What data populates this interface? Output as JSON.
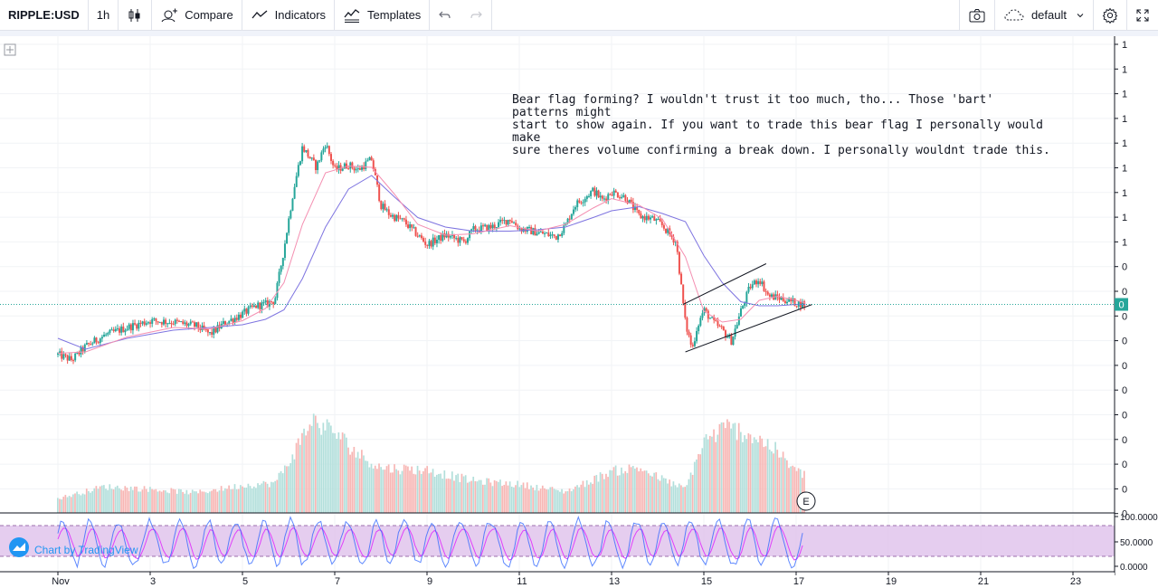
{
  "toolbar": {
    "symbol": "RIPPLE:USD",
    "interval": "1h",
    "compare_label": "Compare",
    "indicators_label": "Indicators",
    "templates_label": "Templates",
    "layout_label": "default"
  },
  "annotation": "Bear flag forming? I wouldn't trust it too much, tho... Those 'bart' patterns might\nstart to show again. If you want to trade this bear flag I personally would make\nsure theres volume confirming a break down. I personally wouldnt trade this.",
  "watermark": "Chart by TradingView",
  "colors": {
    "up": "#26a69a",
    "down": "#ef5350",
    "ma_fast": "#f48fb1",
    "ma_slow": "#7e74e0",
    "stoch_k": "#2962ff",
    "stoch_d": "#e040fb",
    "stoch_band": "#e1c4ec"
  },
  "chart_data": {
    "type": "candlestick",
    "x_ticks": [
      "Nov",
      "3",
      "5",
      "7",
      "9",
      "11",
      "13",
      "15",
      "17",
      "19",
      "21",
      "23"
    ],
    "price_axis_labels": [
      "1",
      "1",
      "1",
      "1",
      "1",
      "1",
      "1",
      "1",
      "1",
      "0",
      "0",
      "0",
      "0",
      "0",
      "0",
      "0",
      "0",
      "0",
      "0",
      "0"
    ],
    "last_price_label": "0",
    "event_marker": "E",
    "stoch_axis_labels": [
      "100.0000",
      "50.0000",
      "0.0000"
    ],
    "series": [
      {
        "kind": "price_path",
        "x": [
          1,
          1.3,
          1.6,
          2,
          2.5,
          3,
          3.5,
          4,
          4.3,
          4.6,
          5,
          5.3,
          5.5,
          5.7,
          5.9,
          6.1,
          6.3,
          6.6,
          6.8,
          7,
          7.3,
          7.5,
          7.8,
          8,
          8.2,
          8.5,
          8.8,
          9,
          9.4,
          9.8,
          10,
          10.4,
          10.8,
          11,
          11.4,
          11.8,
          12,
          12.2,
          12.6,
          12.8,
          13,
          13.3,
          13.6,
          13.9,
          14.1,
          14.4,
          14.6,
          14.75,
          14.85,
          15,
          15.2,
          15.4,
          15.6,
          15.8,
          16,
          16.2,
          16.4,
          16.6,
          16.8,
          17,
          17.2
        ],
        "y": [
          0.352,
          0.348,
          0.358,
          0.366,
          0.372,
          0.377,
          0.376,
          0.373,
          0.367,
          0.375,
          0.382,
          0.388,
          0.389,
          0.392,
          0.43,
          0.472,
          0.505,
          0.49,
          0.508,
          0.488,
          0.492,
          0.488,
          0.496,
          0.462,
          0.455,
          0.45,
          0.44,
          0.433,
          0.44,
          0.435,
          0.444,
          0.446,
          0.452,
          0.445,
          0.442,
          0.439,
          0.447,
          0.462,
          0.473,
          0.466,
          0.472,
          0.468,
          0.454,
          0.452,
          0.447,
          0.435,
          0.375,
          0.356,
          0.372,
          0.385,
          0.376,
          0.37,
          0.362,
          0.384,
          0.402,
          0.408,
          0.395,
          0.394,
          0.392,
          0.39,
          0.389
        ]
      },
      {
        "kind": "ma_fast",
        "x": [
          1,
          1.6,
          2.5,
          3.5,
          4.3,
          5,
          5.5,
          5.9,
          6.3,
          6.8,
          7.3,
          7.8,
          8.3,
          8.8,
          9.4,
          10,
          10.8,
          11.4,
          12,
          12.6,
          13,
          13.6,
          14.1,
          14.6,
          15,
          15.4,
          15.8,
          16.2,
          16.6,
          17,
          17.2
        ],
        "y": [
          0.353,
          0.354,
          0.365,
          0.372,
          0.371,
          0.377,
          0.386,
          0.405,
          0.448,
          0.486,
          0.491,
          0.49,
          0.47,
          0.448,
          0.44,
          0.441,
          0.447,
          0.443,
          0.448,
          0.46,
          0.467,
          0.462,
          0.452,
          0.424,
          0.384,
          0.376,
          0.378,
          0.392,
          0.395,
          0.392,
          0.39
        ]
      },
      {
        "kind": "ma_slow",
        "x": [
          1,
          1.6,
          2.5,
          3.5,
          4.3,
          5,
          5.5,
          5.9,
          6.3,
          6.8,
          7.3,
          7.8,
          8.3,
          8.8,
          9.4,
          10,
          10.8,
          11.4,
          12,
          12.6,
          13,
          13.6,
          14.1,
          14.6,
          15,
          15.4,
          15.8,
          16.2,
          16.6,
          17,
          17.2
        ],
        "y": [
          0.364,
          0.356,
          0.364,
          0.37,
          0.372,
          0.374,
          0.378,
          0.385,
          0.408,
          0.446,
          0.474,
          0.484,
          0.468,
          0.453,
          0.446,
          0.443,
          0.443,
          0.444,
          0.446,
          0.453,
          0.458,
          0.461,
          0.456,
          0.45,
          0.425,
          0.405,
          0.391,
          0.388,
          0.388,
          0.389,
          0.389
        ]
      },
      {
        "kind": "trendline_upper",
        "x": [
          14.55,
          16.35
        ],
        "y": [
          0.389,
          0.419
        ]
      },
      {
        "kind": "trendline_lower",
        "x": [
          14.6,
          17.35
        ],
        "y": [
          0.354,
          0.389
        ]
      },
      {
        "kind": "volume_profile",
        "x": [
          1,
          2,
          3,
          4,
          5,
          5.7,
          6,
          6.5,
          7,
          7.5,
          8,
          9,
          10,
          11,
          12,
          12.5,
          13,
          13.6,
          14,
          14.6,
          15,
          15.5,
          16,
          16.5,
          17,
          17.2
        ],
        "y": [
          0.12,
          0.22,
          0.2,
          0.17,
          0.23,
          0.25,
          0.42,
          0.78,
          0.68,
          0.5,
          0.38,
          0.36,
          0.27,
          0.24,
          0.18,
          0.26,
          0.35,
          0.38,
          0.3,
          0.2,
          0.6,
          0.72,
          0.66,
          0.55,
          0.35,
          0.32
        ]
      }
    ]
  }
}
